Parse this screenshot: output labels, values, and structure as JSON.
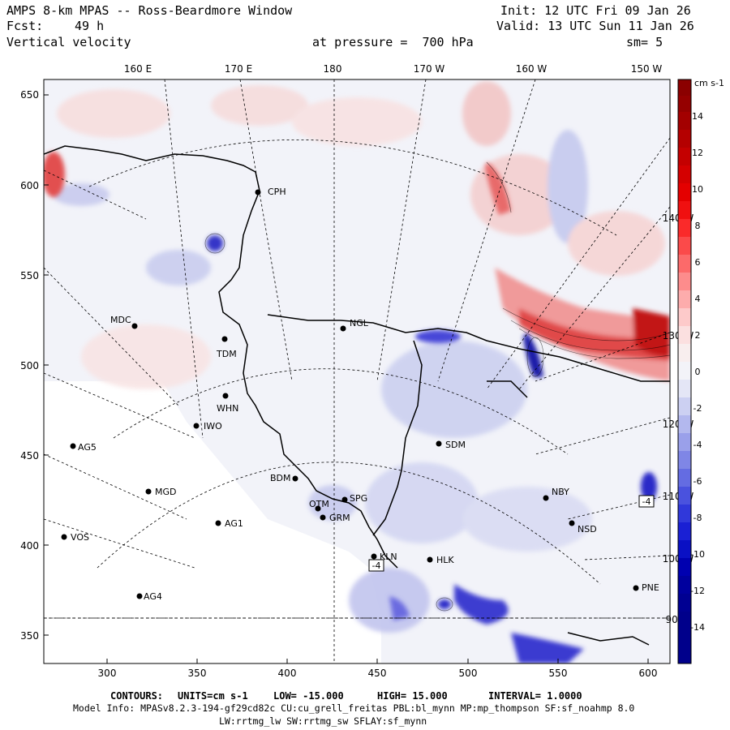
{
  "header": {
    "title": "AMPS 8-km MPAS -- Ross-Beardmore Window",
    "forecast_label": "Fcst:",
    "forecast_value": "49 h",
    "field": "Vertical velocity",
    "init": "Init: 12 UTC Fri 09 Jan 26",
    "valid": "Valid: 13 UTC Sun 11 Jan 26",
    "pressure": "at pressure =  700 hPa",
    "smoothing": "sm= 5"
  },
  "map": {
    "longitude_labels_top": [
      "160 E",
      "170 E",
      "180",
      "170 W",
      "160 W",
      "150 W"
    ],
    "x_ticks": [
      "300",
      "350",
      "400",
      "450",
      "500",
      "550",
      "600"
    ],
    "y_ticks": [
      "650",
      "600",
      "550",
      "500",
      "450",
      "400",
      "350"
    ],
    "right_longitude_labels": [
      "140 W",
      "130 W",
      "120 W",
      "110 W",
      "100 W",
      "90 W"
    ],
    "stations": [
      {
        "id": "CPH"
      },
      {
        "id": "NGL"
      },
      {
        "id": "MDC"
      },
      {
        "id": "TDM"
      },
      {
        "id": "WHN"
      },
      {
        "id": "IWO"
      },
      {
        "id": "AG5"
      },
      {
        "id": "SDM"
      },
      {
        "id": "BDM"
      },
      {
        "id": "MGD"
      },
      {
        "id": "SPG"
      },
      {
        "id": "OTM"
      },
      {
        "id": "GRM"
      },
      {
        "id": "NBY"
      },
      {
        "id": "AG1"
      },
      {
        "id": "NSD"
      },
      {
        "id": "VOS"
      },
      {
        "id": "KLN"
      },
      {
        "id": "HLK"
      },
      {
        "id": "PNE"
      },
      {
        "id": "AG4"
      }
    ],
    "min_box_labels": [
      "-4",
      "-4"
    ]
  },
  "colorbar": {
    "units": "cm s-1",
    "labels": [
      "14",
      "12",
      "10",
      "8",
      "6",
      "4",
      "2",
      "0",
      "-2",
      "-4",
      "-6",
      "-8",
      "-10",
      "-12",
      "-14"
    ]
  },
  "footer": {
    "contours_label": "CONTOURS:",
    "units": "UNITS=cm s-1",
    "low": "LOW= -15.000",
    "high": "HIGH= 15.000",
    "interval": "INTERVAL= 1.0000",
    "model_info": "Model Info: MPASv8.2.3-194-gf29cd82c CU:cu_grell_freitas PBL:bl_mynn MP:mp_thompson SF:sf_noahmp 8.0",
    "model_info2": "LW:rrtmg_lw SW:rrtmg_sw SFLAY:sf_mynn"
  },
  "colors": {
    "positive_max": "#8b0000",
    "positive_mid": "#ff3a3a",
    "positive_light": "#f6d4d4",
    "neutral": "#f3f3f8",
    "negative_light": "#d5d8f0",
    "negative_mid": "#4a4ae0",
    "negative_max": "#00008b"
  }
}
